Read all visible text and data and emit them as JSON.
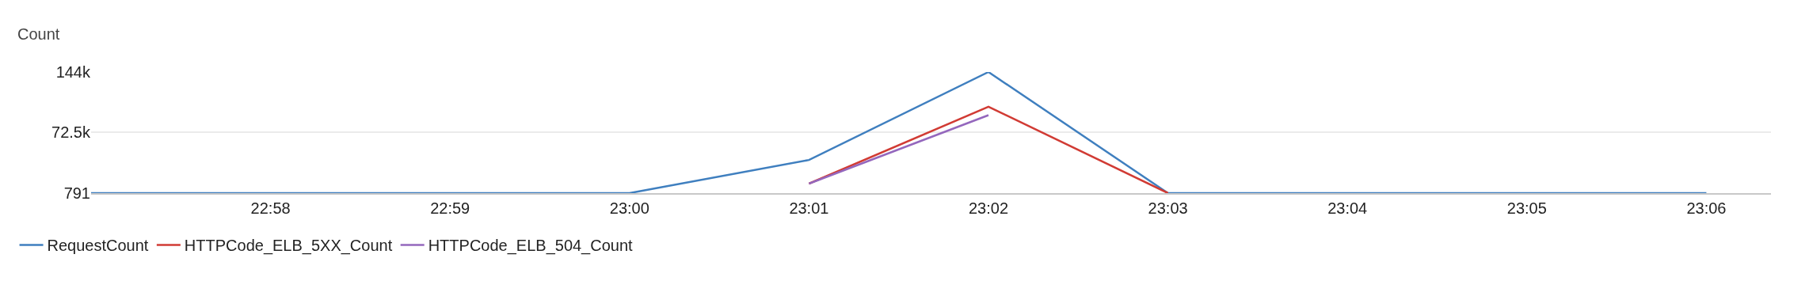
{
  "chart_data": {
    "type": "line",
    "ylabel": "Count",
    "x": [
      22.95,
      22.966667,
      22.983333,
      23.0,
      23.016667,
      23.033333,
      23.05,
      23.066667,
      23.083333,
      23.1
    ],
    "series": [
      {
        "name": "RequestCount",
        "color": "#3f7fbf",
        "values": [
          791,
          791,
          791,
          791,
          40000,
          144000,
          791,
          791,
          791,
          791
        ]
      },
      {
        "name": "HTTPCode_ELB_5XX_Count",
        "color": "#d13b34",
        "values": [
          null,
          null,
          null,
          null,
          12000,
          103000,
          791,
          null,
          null,
          null
        ]
      },
      {
        "name": "HTTPCode_ELB_504_Count",
        "color": "#9467bd",
        "values": [
          null,
          null,
          null,
          null,
          12000,
          93000,
          null,
          null,
          null,
          null
        ]
      }
    ],
    "xlim": [
      22.95,
      23.106
    ],
    "xticks": [
      {
        "value": 22.966667,
        "label": "22:58"
      },
      {
        "value": 22.983333,
        "label": "22:59"
      },
      {
        "value": 23.0,
        "label": "23:00"
      },
      {
        "value": 23.016667,
        "label": "23:01"
      },
      {
        "value": 23.033333,
        "label": "23:02"
      },
      {
        "value": 23.05,
        "label": "23:03"
      },
      {
        "value": 23.066667,
        "label": "23:04"
      },
      {
        "value": 23.083333,
        "label": "23:05"
      },
      {
        "value": 23.1,
        "label": "23:06"
      }
    ],
    "ylim": [
      791,
      144000
    ],
    "yticks": [
      791,
      {
        "value": 72500,
        "label": "72.5k"
      },
      {
        "value": 144000,
        "label": "144k"
      }
    ],
    "grid": "y",
    "legend": "bottom left",
    "marker": "none",
    "line_style": "solid"
  }
}
